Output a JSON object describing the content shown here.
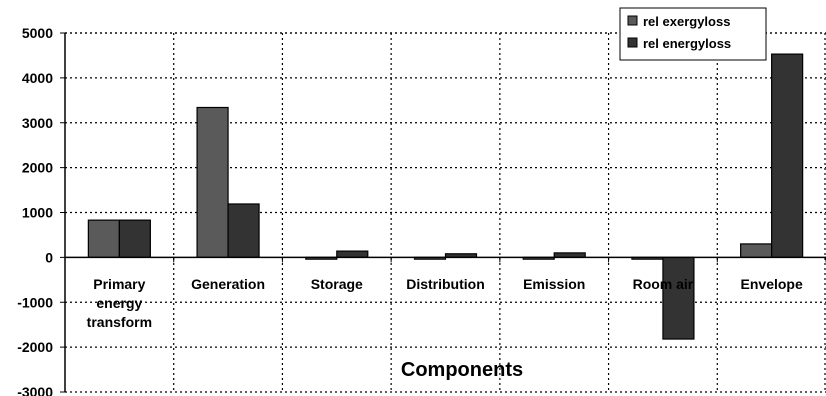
{
  "chart_data": {
    "type": "bar",
    "title": "",
    "xlabel": "Components",
    "ylabel": "",
    "ylim": [
      -3000,
      5000
    ],
    "yticks": [
      5000,
      4000,
      3000,
      2000,
      1000,
      0,
      -1000,
      -2000,
      -3000
    ],
    "categories": [
      "Primary energy transform",
      "Generation",
      "Storage",
      "Distribution",
      "Emission",
      "Room air",
      "Envelope"
    ],
    "category_lines": [
      [
        "Primary",
        "energy",
        "transform"
      ],
      [
        "Generation"
      ],
      [
        "Storage"
      ],
      [
        "Distribution"
      ],
      [
        "Emission"
      ],
      [
        "Room air"
      ],
      [
        "Envelope"
      ]
    ],
    "series": [
      {
        "name": "rel exergyloss",
        "color": "#5a5a5a",
        "values": [
          830,
          3340,
          -40,
          -40,
          -40,
          -40,
          300
        ]
      },
      {
        "name": "rel energyloss",
        "color": "#333333",
        "values": [
          830,
          1190,
          140,
          80,
          100,
          -1820,
          4530
        ]
      }
    ],
    "grid": true,
    "grid_style": "dotted",
    "legend_position": "top-right"
  }
}
